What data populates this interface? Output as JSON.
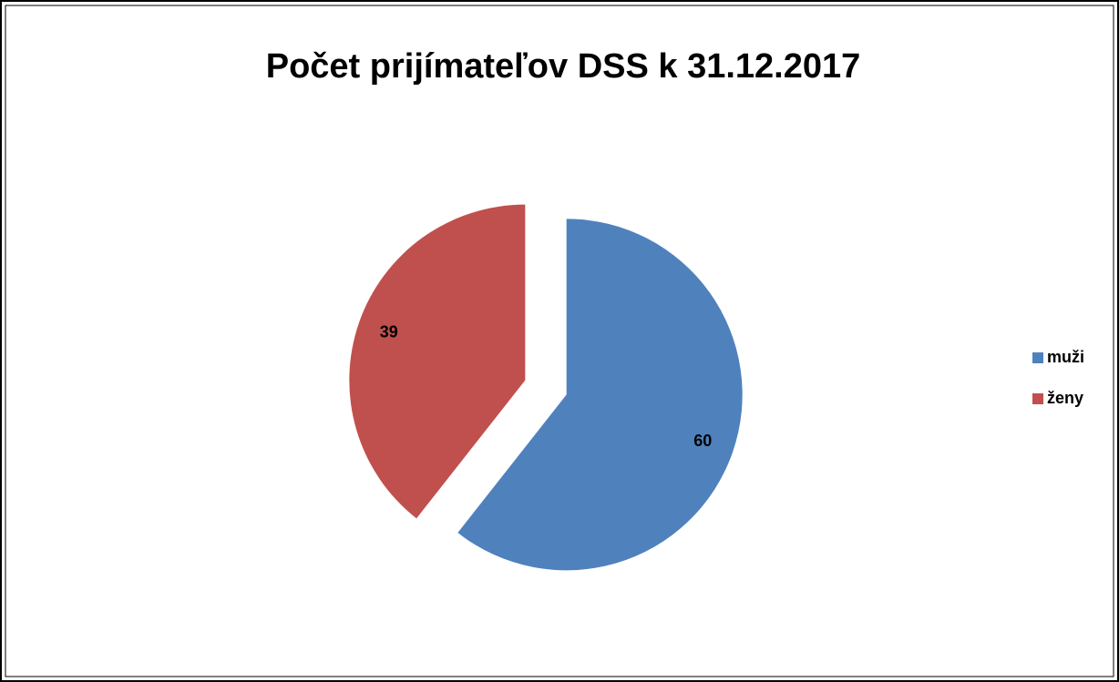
{
  "chart_data": {
    "type": "pie",
    "title": "Počet prijímateľov DSS k 31.12.2017",
    "categories": [
      "muži",
      "ženy"
    ],
    "values": [
      60,
      39
    ],
    "colors": [
      "#4f81bd",
      "#c0504d"
    ],
    "legend": "right",
    "exploded": true
  }
}
